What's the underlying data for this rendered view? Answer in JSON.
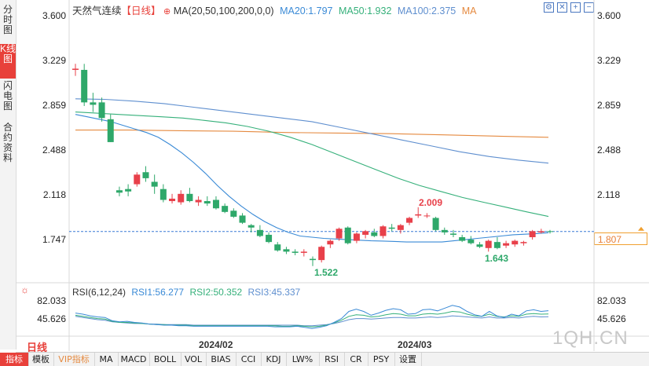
{
  "side_tabs": [
    "分时图",
    "K线图",
    "闪电图",
    "合约资料"
  ],
  "header": {
    "name": "天然气连续",
    "period": "【日线】",
    "ma_params": "MA(20,50,100,200,0,0)",
    "ma20": "MA20:1.797",
    "ma50": "MA50:1.932",
    "ma100": "MA100:2.375",
    "ma": "MA"
  },
  "colors": {
    "up": "#e8404a",
    "down": "#2ea86a",
    "ma20": "#3a8ad6",
    "ma50": "#35b07a",
    "ma100": "#5f8fcf",
    "ma200": "#e58a40",
    "rsi1": "#3a8ad6",
    "rsi2": "#35b07a",
    "rsi3": "#5f8fcf"
  },
  "price_axis": [
    "3.600",
    "3.229",
    "2.859",
    "2.488",
    "2.118",
    "1.747"
  ],
  "current_price": "1.807",
  "annotations": {
    "high": "2.009",
    "low1": "1.522",
    "low2": "1.643"
  },
  "rsi": {
    "label": "RSI(6,12,24)",
    "rsi1": "RSI1:56.277",
    "rsi2": "RSI2:50.352",
    "rsi3": "RSI3:45.337",
    "axis": [
      "82.033",
      "45.626"
    ]
  },
  "period_label": "日线",
  "date_labels": [
    "2024/02",
    "2024/03"
  ],
  "watermark": "1QH.CN",
  "bottom_tabs": [
    "指标",
    "模板",
    "VIP指标",
    "MA",
    "MACD",
    "BOLL",
    "VOL",
    "BIAS",
    "CCI",
    "KDJ",
    "LW%",
    "RSI",
    "CR",
    "PSY",
    "设置"
  ],
  "icons": [
    "settings-icon",
    "close-icon",
    "plus-icon",
    "minus-icon",
    "left-icon",
    "right-icon",
    "expand-icon"
  ],
  "chart_data": {
    "type": "candlestick",
    "ylim": [
      1.45,
      3.65
    ],
    "candles": [
      [
        3.15,
        3.2,
        3.1,
        3.16
      ],
      [
        3.15,
        3.2,
        2.85,
        2.88
      ],
      [
        2.88,
        2.96,
        2.8,
        2.86
      ],
      [
        2.88,
        2.92,
        2.72,
        2.75
      ],
      [
        2.74,
        2.78,
        2.55,
        2.55
      ],
      [
        2.15,
        2.18,
        2.1,
        2.13
      ],
      [
        2.16,
        2.2,
        2.1,
        2.14
      ],
      [
        2.2,
        2.3,
        2.18,
        2.28
      ],
      [
        2.3,
        2.35,
        2.22,
        2.25
      ],
      [
        2.22,
        2.28,
        2.12,
        2.18
      ],
      [
        2.16,
        2.2,
        2.05,
        2.07
      ],
      [
        2.06,
        2.12,
        2.04,
        2.08
      ],
      [
        2.05,
        2.15,
        2.03,
        2.12
      ],
      [
        2.12,
        2.17,
        2.05,
        2.06
      ],
      [
        2.05,
        2.1,
        2.02,
        2.07
      ],
      [
        2.06,
        2.1,
        2.02,
        2.04
      ],
      [
        2.07,
        2.1,
        1.99,
        2.0
      ],
      [
        2.02,
        2.04,
        1.96,
        1.97
      ],
      [
        1.98,
        2.0,
        1.92,
        1.93
      ],
      [
        1.94,
        1.96,
        1.87,
        1.88
      ],
      [
        1.86,
        1.87,
        1.8,
        1.84
      ],
      [
        1.82,
        1.86,
        1.76,
        1.77
      ],
      [
        1.78,
        1.8,
        1.71,
        1.72
      ],
      [
        1.7,
        1.72,
        1.64,
        1.65
      ],
      [
        1.66,
        1.68,
        1.62,
        1.64
      ],
      [
        1.64,
        1.66,
        1.61,
        1.63
      ],
      [
        1.63,
        1.66,
        1.6,
        1.64
      ],
      [
        1.58,
        1.6,
        1.52,
        1.57
      ],
      [
        1.57,
        1.69,
        1.55,
        1.68
      ],
      [
        1.7,
        1.74,
        1.67,
        1.73
      ],
      [
        1.75,
        1.84,
        1.73,
        1.83
      ],
      [
        1.84,
        1.85,
        1.7,
        1.71
      ],
      [
        1.73,
        1.8,
        1.71,
        1.79
      ],
      [
        1.78,
        1.82,
        1.75,
        1.81
      ],
      [
        1.8,
        1.83,
        1.76,
        1.77
      ],
      [
        1.77,
        1.86,
        1.75,
        1.85
      ],
      [
        1.84,
        1.87,
        1.81,
        1.83
      ],
      [
        1.82,
        1.87,
        1.79,
        1.86
      ],
      [
        1.88,
        1.93,
        1.86,
        1.92
      ],
      [
        1.94,
        2.009,
        1.92,
        1.95
      ],
      [
        1.94,
        1.96,
        1.92,
        1.94
      ],
      [
        1.92,
        1.93,
        1.81,
        1.82
      ],
      [
        1.82,
        1.84,
        1.78,
        1.8
      ],
      [
        1.79,
        1.82,
        1.76,
        1.78
      ],
      [
        1.76,
        1.78,
        1.72,
        1.73
      ],
      [
        1.74,
        1.77,
        1.7,
        1.71
      ],
      [
        1.7,
        1.72,
        1.67,
        1.68
      ],
      [
        1.67,
        1.74,
        1.64,
        1.73
      ],
      [
        1.72,
        1.76,
        1.66,
        1.67
      ],
      [
        1.69,
        1.73,
        1.67,
        1.71
      ],
      [
        1.7,
        1.74,
        1.68,
        1.73
      ],
      [
        1.71,
        1.73,
        1.69,
        1.72
      ],
      [
        1.76,
        1.82,
        1.74,
        1.81
      ],
      [
        1.8,
        1.83,
        1.79,
        1.81
      ],
      [
        1.81,
        1.82,
        1.79,
        1.807
      ]
    ],
    "ma20": [
      2.78,
      2.76,
      2.74,
      2.72,
      2.69,
      2.66,
      2.63,
      2.59,
      2.53,
      2.46,
      2.38,
      2.29,
      2.19,
      2.1,
      2.02,
      1.95,
      1.89,
      1.84,
      1.8,
      1.77,
      1.76,
      1.75,
      1.745,
      1.74,
      1.735,
      1.73,
      1.728,
      1.725,
      1.72,
      1.72,
      1.72,
      1.72,
      1.73,
      1.74,
      1.75,
      1.76,
      1.77,
      1.78,
      1.785,
      1.79,
      1.797
    ],
    "ma50": [
      2.8,
      2.79,
      2.78,
      2.77,
      2.76,
      2.75,
      2.73,
      2.71,
      2.68,
      2.64,
      2.59,
      2.53,
      2.46,
      2.39,
      2.32,
      2.25,
      2.19,
      2.14,
      2.09,
      2.05,
      2.01,
      1.97,
      1.932
    ],
    "ma100": [
      2.91,
      2.905,
      2.89,
      2.87,
      2.84,
      2.81,
      2.78,
      2.75,
      2.72,
      2.67,
      2.62,
      2.57,
      2.52,
      2.47,
      2.43,
      2.4,
      2.375
    ],
    "ma200": [
      2.65,
      2.65,
      2.645,
      2.64,
      2.63,
      2.625,
      2.62,
      2.61,
      2.6,
      2.59
    ],
    "rsi_ylim": [
      10,
      90
    ],
    "rsi1": [
      52,
      50,
      47,
      45,
      44,
      38,
      36,
      37,
      35,
      34,
      32,
      31,
      30,
      30,
      29,
      29,
      28,
      28,
      28,
      28,
      28,
      28,
      28,
      28,
      28,
      28,
      28,
      27,
      27,
      27,
      28,
      26,
      24,
      26,
      29,
      35,
      42,
      55,
      59,
      55,
      48,
      52,
      57,
      60,
      58,
      50,
      51,
      58,
      59,
      56,
      61,
      66,
      63,
      55,
      49,
      46,
      55,
      47,
      44,
      50,
      47,
      56,
      58,
      55,
      56.277
    ],
    "rsi2": [
      48,
      46,
      44,
      42,
      41,
      37,
      35,
      35,
      34,
      33,
      32,
      31,
      31,
      30,
      30,
      30,
      29,
      29,
      29,
      29,
      29,
      29,
      29,
      29,
      29,
      29,
      29,
      29,
      28,
      28,
      29,
      28,
      27,
      28,
      30,
      34,
      39,
      46,
      49,
      48,
      45,
      46,
      49,
      51,
      50,
      47,
      47,
      50,
      51,
      50,
      52,
      55,
      54,
      50,
      47,
      46,
      50,
      46,
      45,
      47,
      46,
      50,
      51,
      50,
      50.352
    ],
    "rsi3": [
      46,
      44,
      42,
      40,
      39,
      36,
      35,
      34,
      33,
      33,
      32,
      32,
      31,
      31,
      31,
      31,
      30,
      30,
      30,
      30,
      30,
      30,
      30,
      30,
      30,
      30,
      30,
      30,
      30,
      30,
      30,
      29,
      29,
      30,
      31,
      33,
      36,
      40,
      42,
      42,
      41,
      42,
      43,
      44,
      44,
      43,
      43,
      44,
      45,
      44,
      45,
      47,
      46,
      45,
      44,
      43,
      45,
      43,
      43,
      44,
      43,
      45,
      46,
      45,
      45.337
    ]
  }
}
